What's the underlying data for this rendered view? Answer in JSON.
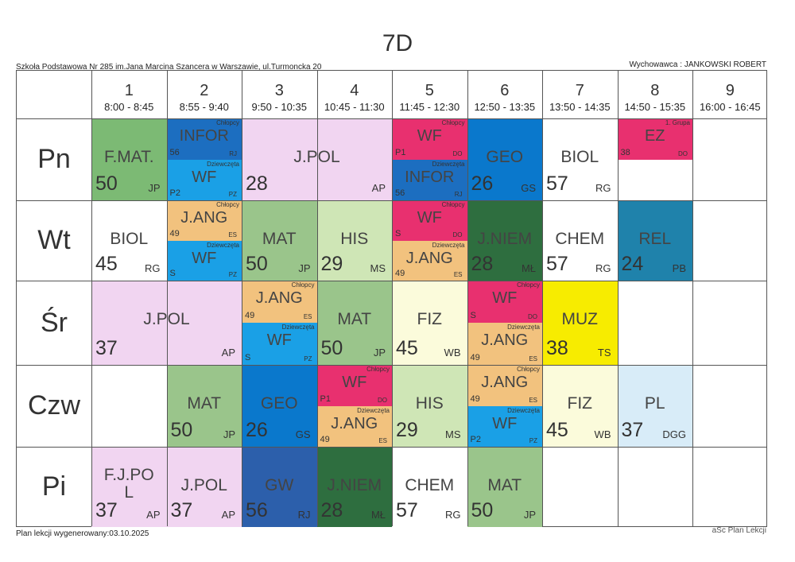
{
  "title": "7D",
  "school": "Szkoła Podstawowa Nr 285 im.Jana Marcina Szancera w Warszawie, ul.Turmoncka 20",
  "teacher": "Wychowawca : JANKOWSKI ROBERT",
  "footer_left": "Plan lekcji wygenerowany:03.10.2025",
  "footer_right": "aSc Plan Lekcji",
  "periods": [
    {
      "num": "1",
      "time": "8:00 - 8:45"
    },
    {
      "num": "2",
      "time": "8:55 - 9:40"
    },
    {
      "num": "3",
      "time": "9:50 - 10:35"
    },
    {
      "num": "4",
      "time": "10:45 - 11:30"
    },
    {
      "num": "5",
      "time": "11:45 - 12:30"
    },
    {
      "num": "6",
      "time": "12:50 - 13:35"
    },
    {
      "num": "7",
      "time": "13:50 - 14:35"
    },
    {
      "num": "8",
      "time": "14:50 - 15:35"
    },
    {
      "num": "9",
      "time": "16:00 - 16:45"
    }
  ],
  "days": [
    "Pn",
    "Wt",
    "Śr",
    "Czw",
    "Pi"
  ],
  "lessons": [
    {
      "day": 0,
      "start": 0,
      "span": 1,
      "subject": "F.MAT.",
      "room": "50",
      "teacher": "JP",
      "color": "#7cba74"
    },
    {
      "day": 0,
      "start": 1,
      "span": 1,
      "half": "top",
      "group": "Chłopcy",
      "subject": "INFOR",
      "room": "56",
      "teacher": "RJ",
      "color": "#1c6ec0"
    },
    {
      "day": 0,
      "start": 1,
      "span": 1,
      "half": "bottom",
      "group": "Dziewczęta",
      "subject": "WF",
      "room": "P2",
      "teacher": "PZ",
      "color": "#1aa0e6"
    },
    {
      "day": 0,
      "start": 2,
      "span": 2,
      "subject": "J.POL",
      "room": "28",
      "teacher": "AP",
      "color": "#f1d5f1"
    },
    {
      "day": 0,
      "start": 4,
      "span": 1,
      "half": "top",
      "group": "Chłopcy",
      "subject": "WF",
      "room": "P1",
      "teacher": "DO",
      "color": "#e8306f"
    },
    {
      "day": 0,
      "start": 4,
      "span": 1,
      "half": "bottom",
      "group": "Dziewczęta",
      "subject": "INFOR",
      "room": "56",
      "teacher": "RJ",
      "color": "#1c6ec0"
    },
    {
      "day": 0,
      "start": 5,
      "span": 1,
      "subject": "GEO",
      "room": "26",
      "teacher": "GS",
      "color": "#0a78cc"
    },
    {
      "day": 0,
      "start": 6,
      "span": 1,
      "subject": "BIOL",
      "room": "57",
      "teacher": "RG",
      "color": "#ffffff"
    },
    {
      "day": 0,
      "start": 7,
      "span": 1,
      "half": "top",
      "group": "1. Grupa",
      "subject": "EZ",
      "room": "38",
      "teacher": "DO",
      "color": "#e8306f"
    },
    {
      "day": 1,
      "start": 0,
      "span": 1,
      "subject": "BIOL",
      "room": "45",
      "teacher": "RG",
      "color": "#ffffff"
    },
    {
      "day": 1,
      "start": 1,
      "span": 1,
      "half": "top",
      "group": "Chłopcy",
      "subject": "J.ANG",
      "room": "49",
      "teacher": "ES",
      "color": "#f2c27e"
    },
    {
      "day": 1,
      "start": 1,
      "span": 1,
      "half": "bottom",
      "group": "Dziewczęta",
      "subject": "WF",
      "room": "S",
      "teacher": "PZ",
      "color": "#1aa0e6"
    },
    {
      "day": 1,
      "start": 2,
      "span": 1,
      "subject": "MAT",
      "room": "50",
      "teacher": "JP",
      "color": "#9ac58b"
    },
    {
      "day": 1,
      "start": 3,
      "span": 1,
      "subject": "HIS",
      "room": "29",
      "teacher": "MS",
      "color": "#cfe6b6"
    },
    {
      "day": 1,
      "start": 4,
      "span": 1,
      "half": "top",
      "group": "Chłopcy",
      "subject": "WF",
      "room": "S",
      "teacher": "DO",
      "color": "#e8306f"
    },
    {
      "day": 1,
      "start": 4,
      "span": 1,
      "half": "bottom",
      "group": "Dziewczęta",
      "subject": "J.ANG",
      "room": "49",
      "teacher": "ES",
      "color": "#f2c27e"
    },
    {
      "day": 1,
      "start": 5,
      "span": 1,
      "subject": "J.NIEM",
      "room": "28",
      "teacher": "MŁ",
      "color": "#2e6e3f"
    },
    {
      "day": 1,
      "start": 6,
      "span": 1,
      "subject": "CHEM",
      "room": "57",
      "teacher": "RG",
      "color": "#ffffff"
    },
    {
      "day": 1,
      "start": 7,
      "span": 1,
      "subject": "REL",
      "room": "24",
      "teacher": "PB",
      "color": "#1f82ab"
    },
    {
      "day": 2,
      "start": 0,
      "span": 2,
      "subject": "J.POL",
      "room": "37",
      "teacher": "AP",
      "color": "#f1d5f1"
    },
    {
      "day": 2,
      "start": 2,
      "span": 1,
      "half": "top",
      "group": "Chłopcy",
      "subject": "J.ANG",
      "room": "49",
      "teacher": "ES",
      "color": "#f2c27e"
    },
    {
      "day": 2,
      "start": 2,
      "span": 1,
      "half": "bottom",
      "group": "Dziewczęta",
      "subject": "WF",
      "room": "S",
      "teacher": "PZ",
      "color": "#1aa0e6"
    },
    {
      "day": 2,
      "start": 3,
      "span": 1,
      "subject": "MAT",
      "room": "50",
      "teacher": "JP",
      "color": "#9ac58b"
    },
    {
      "day": 2,
      "start": 4,
      "span": 1,
      "subject": "FIZ",
      "room": "45",
      "teacher": "WB",
      "color": "#fbfbdb"
    },
    {
      "day": 2,
      "start": 5,
      "span": 1,
      "half": "top",
      "group": "Chłopcy",
      "subject": "WF",
      "room": "S",
      "teacher": "DO",
      "color": "#e8306f"
    },
    {
      "day": 2,
      "start": 5,
      "span": 1,
      "half": "bottom",
      "group": "Dziewczęta",
      "subject": "J.ANG",
      "room": "49",
      "teacher": "ES",
      "color": "#f2c27e"
    },
    {
      "day": 2,
      "start": 6,
      "span": 1,
      "subject": "MUZ",
      "room": "38",
      "teacher": "TS",
      "color": "#f7ec00"
    },
    {
      "day": 3,
      "start": 1,
      "span": 1,
      "subject": "MAT",
      "room": "50",
      "teacher": "JP",
      "color": "#9ac58b"
    },
    {
      "day": 3,
      "start": 2,
      "span": 1,
      "subject": "GEO",
      "room": "26",
      "teacher": "GS",
      "color": "#0a78cc"
    },
    {
      "day": 3,
      "start": 3,
      "span": 1,
      "half": "top",
      "group": "Chłopcy",
      "subject": "WF",
      "room": "P1",
      "teacher": "DO",
      "color": "#e8306f"
    },
    {
      "day": 3,
      "start": 3,
      "span": 1,
      "half": "bottom",
      "group": "Dziewczęta",
      "subject": "J.ANG",
      "room": "49",
      "teacher": "ES",
      "color": "#f2c27e"
    },
    {
      "day": 3,
      "start": 4,
      "span": 1,
      "subject": "HIS",
      "room": "29",
      "teacher": "MS",
      "color": "#cfe6b6"
    },
    {
      "day": 3,
      "start": 5,
      "span": 1,
      "half": "top",
      "group": "Chłopcy",
      "subject": "J.ANG",
      "room": "49",
      "teacher": "ES",
      "color": "#f2c27e"
    },
    {
      "day": 3,
      "start": 5,
      "span": 1,
      "half": "bottom",
      "group": "Dziewczęta",
      "subject": "WF",
      "room": "P2",
      "teacher": "PZ",
      "color": "#1aa0e6"
    },
    {
      "day": 3,
      "start": 6,
      "span": 1,
      "subject": "FIZ",
      "room": "45",
      "teacher": "WB",
      "color": "#fbfbdb"
    },
    {
      "day": 3,
      "start": 7,
      "span": 1,
      "subject": "PL",
      "room": "37",
      "teacher": "DGG",
      "color": "#d8ecf8"
    },
    {
      "day": 4,
      "start": 0,
      "span": 1,
      "subject": "F.J.PO\nL",
      "room": "37",
      "teacher": "AP",
      "color": "#f1d5f1"
    },
    {
      "day": 4,
      "start": 1,
      "span": 1,
      "subject": "J.POL",
      "room": "37",
      "teacher": "AP",
      "color": "#f1d5f1"
    },
    {
      "day": 4,
      "start": 2,
      "span": 1,
      "subject": "GW",
      "room": "56",
      "teacher": "RJ",
      "color": "#2c5fab"
    },
    {
      "day": 4,
      "start": 3,
      "span": 1,
      "subject": "J.NIEM",
      "room": "28",
      "teacher": "MŁ",
      "color": "#2e6e3f"
    },
    {
      "day": 4,
      "start": 4,
      "span": 1,
      "subject": "CHEM",
      "room": "57",
      "teacher": "RG",
      "color": "#ffffff"
    },
    {
      "day": 4,
      "start": 5,
      "span": 1,
      "subject": "MAT",
      "room": "50",
      "teacher": "JP",
      "color": "#9ac58b"
    }
  ]
}
